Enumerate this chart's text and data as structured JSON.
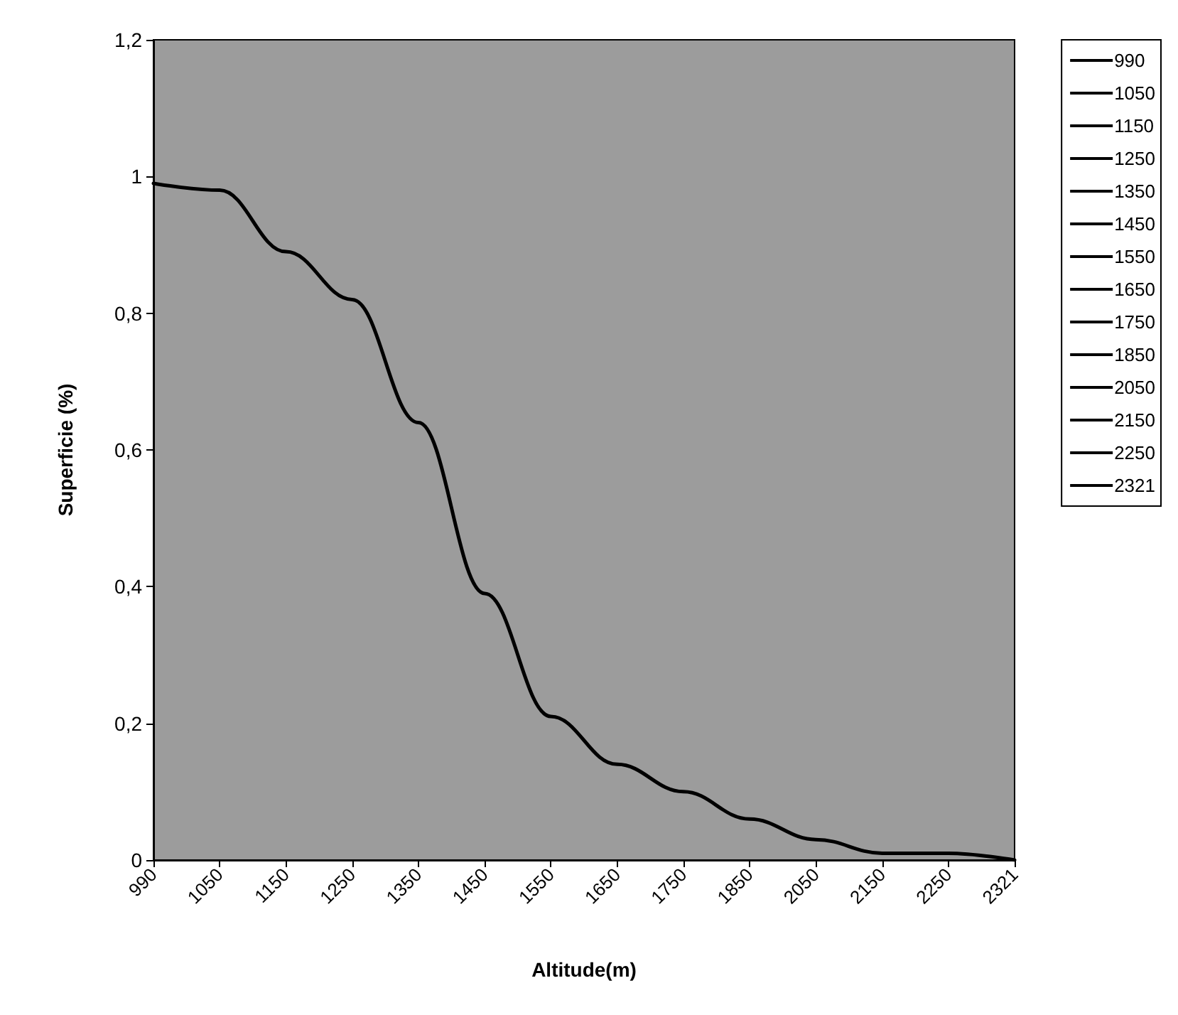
{
  "chart_data": {
    "type": "line",
    "xlabel": "Altitude(m)",
    "ylabel": "Superficie (%)",
    "categories": [
      "990",
      "1050",
      "1150",
      "1250",
      "1350",
      "1450",
      "1550",
      "1650",
      "1750",
      "1850",
      "2050",
      "2150",
      "2250",
      "2321"
    ],
    "series": [
      {
        "color": "#000000",
        "values": [
          0.99,
          0.98,
          0.89,
          0.82,
          0.64,
          0.39,
          0.21,
          0.14,
          0.1,
          0.06,
          0.03,
          0.01,
          0.01,
          0.0
        ]
      },
      {
        "name": "990",
        "color": "#000000",
        "values": [
          null,
          null,
          null,
          null,
          null,
          null,
          null,
          null,
          null,
          null,
          null,
          null,
          null,
          null
        ]
      },
      {
        "name": "1050",
        "color": "#000000",
        "values": [
          null,
          null,
          null,
          null,
          null,
          null,
          null,
          null,
          null,
          null,
          null,
          null,
          null,
          null
        ]
      },
      {
        "name": "1150",
        "color": "#000000",
        "values": [
          null,
          null,
          null,
          null,
          null,
          null,
          null,
          null,
          null,
          null,
          null,
          null,
          null,
          null
        ]
      },
      {
        "name": "1250",
        "color": "#000000",
        "values": [
          null,
          null,
          null,
          null,
          null,
          null,
          null,
          null,
          null,
          null,
          null,
          null,
          null,
          null
        ]
      },
      {
        "name": "1350",
        "color": "#000000",
        "values": [
          null,
          null,
          null,
          null,
          null,
          null,
          null,
          null,
          null,
          null,
          null,
          null,
          null,
          null
        ]
      },
      {
        "name": "1450",
        "color": "#000000",
        "values": [
          null,
          null,
          null,
          null,
          null,
          null,
          null,
          null,
          null,
          null,
          null,
          null,
          null,
          null
        ]
      },
      {
        "name": "1550",
        "color": "#000000",
        "values": [
          null,
          null,
          null,
          null,
          null,
          null,
          null,
          null,
          null,
          null,
          null,
          null,
          null,
          null
        ]
      },
      {
        "name": "1650",
        "color": "#000000",
        "values": [
          null,
          null,
          null,
          null,
          null,
          null,
          null,
          null,
          null,
          null,
          null,
          null,
          null,
          null
        ]
      },
      {
        "name": "1750",
        "color": "#000000",
        "values": [
          null,
          null,
          null,
          null,
          null,
          null,
          null,
          null,
          null,
          null,
          null,
          null,
          null,
          null
        ]
      },
      {
        "name": "1850",
        "color": "#000000",
        "values": [
          null,
          null,
          null,
          null,
          null,
          null,
          null,
          null,
          null,
          null,
          null,
          null,
          null,
          null
        ]
      },
      {
        "name": "2050",
        "color": "#000000",
        "values": [
          null,
          null,
          null,
          null,
          null,
          null,
          null,
          null,
          null,
          null,
          null,
          null,
          null,
          null
        ]
      },
      {
        "name": "2150",
        "color": "#000000",
        "values": [
          null,
          null,
          null,
          null,
          null,
          null,
          null,
          null,
          null,
          null,
          null,
          null,
          null,
          null
        ]
      },
      {
        "name": "2250",
        "color": "#000000",
        "values": [
          null,
          null,
          null,
          null,
          null,
          null,
          null,
          null,
          null,
          null,
          null,
          null,
          null,
          null
        ]
      },
      {
        "name": "2321",
        "color": "#000000",
        "values": [
          null,
          null,
          null,
          null,
          null,
          null,
          null,
          null,
          null,
          null,
          null,
          null,
          null,
          null
        ]
      }
    ],
    "ylim": [
      0,
      1.2
    ],
    "yticks": [
      0,
      {
        "value": 0.2,
        "label": "0,2"
      },
      {
        "value": 0.4,
        "label": "0,4"
      },
      {
        "value": 0.6,
        "label": "0,6"
      },
      {
        "value": 0.8,
        "label": "0,8"
      },
      1,
      {
        "value": 1.2,
        "label": "1,2"
      }
    ],
    "grid": false,
    "legend": "right",
    "marker": "none",
    "line_style": "solid"
  }
}
